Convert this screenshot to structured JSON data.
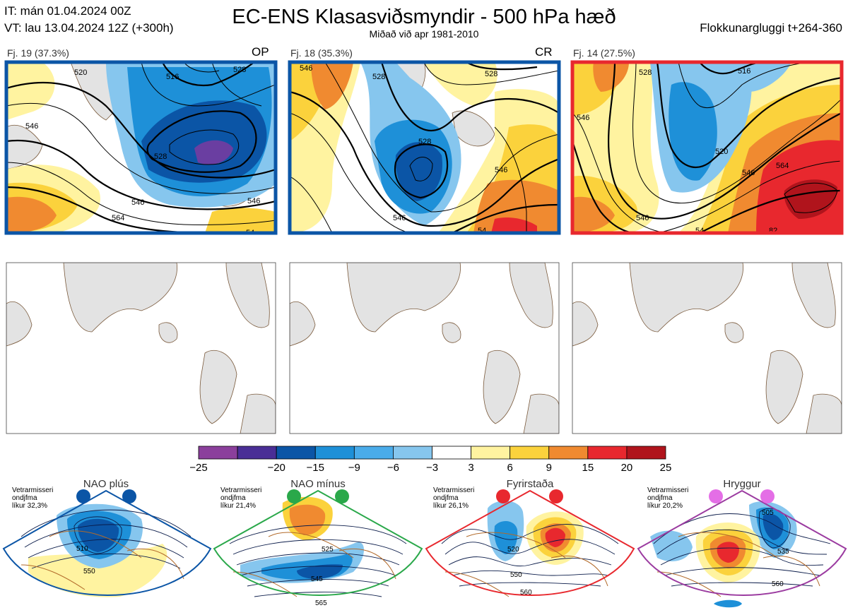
{
  "header": {
    "it": "IT: mán 01.04.2024 00Z",
    "vt": "VT: lau 13.04.2024 12Z  (+300h)",
    "title": "EC-ENS Klasasviðsmyndir - 500 hPa hæð",
    "subtitle": "Miðað við apr 1981-2010",
    "window": "Flokkunargluggi t+264-360"
  },
  "clusters": [
    {
      "label": "Fj. 19 (37.3%)",
      "tag": "OP",
      "border_color": "#0b55a6",
      "contours": [
        "520",
        "516",
        "528",
        "546",
        "528",
        "546",
        "564",
        "546",
        "54"
      ]
    },
    {
      "label": "Fj. 18 (35.3%)",
      "tag": "CR",
      "border_color": "#0b55a6",
      "contours": [
        "546",
        "528",
        "528",
        "528",
        "546",
        "546",
        "54"
      ]
    },
    {
      "label": "Fj. 14 (27.5%)",
      "tag": "",
      "border_color": "#e8282e",
      "contours": [
        "528",
        "516",
        "546",
        "520",
        "546",
        "564",
        "546",
        "54",
        "82"
      ]
    }
  ],
  "colors": {
    "land": "#e3e3e3",
    "coast": "#7a5a3c",
    "neg_strong": "#6a3ea1",
    "neg1": "#0b55a6",
    "neg2": "#1e90d8",
    "neg3": "#86c6ee",
    "pos1": "#fff3a0",
    "pos2": "#fbd23c",
    "pos3": "#f08a30",
    "pos4": "#e8282e",
    "pos5": "#b0141c"
  },
  "colorbar": {
    "ticks": [
      "−25",
      "−20",
      "−15",
      "−9",
      "−6",
      "−3",
      "3",
      "6",
      "9",
      "15",
      "20",
      "25"
    ],
    "colors": [
      "#8b3f9c",
      "#4a2e96",
      "#0b55a6",
      "#1e90d8",
      "#4aacea",
      "#86c6ee",
      "#ffffff",
      "#fff3a0",
      "#fbd23c",
      "#f08a30",
      "#e8282e",
      "#b0141c"
    ]
  },
  "regimes": [
    {
      "name": "NAO plús",
      "ref": [
        "Vetrarmisseri",
        "ondjfma",
        "líkur 32,3%"
      ],
      "color": "#0b55a6",
      "contours": [
        "510",
        "550"
      ]
    },
    {
      "name": "NAO mínus",
      "ref": [
        "Vetrarmisseri",
        "ondjfma",
        "líkur 21,4%"
      ],
      "color": "#2aa84a",
      "contours": [
        "525",
        "545",
        "565"
      ]
    },
    {
      "name": "Fyrirstaða",
      "ref": [
        "Vetrarmisseri",
        "ondjfma",
        "líkur 26,1%"
      ],
      "color": "#e8282e",
      "contours": [
        "520",
        "550",
        "560"
      ]
    },
    {
      "name": "Hryggur",
      "ref": [
        "Vetrarmisseri",
        "ondjfma",
        "líkur 20,2%"
      ],
      "color": "#e46ee6",
      "contours": [
        "505",
        "535",
        "560"
      ]
    }
  ],
  "chart_data": {
    "type": "heatmap",
    "title": "EC-ENS Klasasviðsmyndir - 500 hPa hæð",
    "subtitle": "Miðað við apr 1981-2010",
    "variable": "500 hPa height anomaly (dam) with height contours",
    "colorbar_ticks": [
      -25,
      -20,
      -15,
      -9,
      -6,
      -3,
      3,
      6,
      9,
      15,
      20,
      25
    ],
    "clusters": [
      {
        "id": 19,
        "percent": 37.3,
        "tag": "OP",
        "regime": "NAO plús"
      },
      {
        "id": 18,
        "percent": 35.3,
        "tag": "CR",
        "regime": "NAO plús"
      },
      {
        "id": 14,
        "percent": 27.5,
        "tag": "",
        "regime": "Fyrirstaða"
      }
    ],
    "regime_probabilities": [
      {
        "regime": "NAO plús",
        "percent": 32.3
      },
      {
        "regime": "NAO mínus",
        "percent": 21.4
      },
      {
        "regime": "Fyrirstaða",
        "percent": 26.1
      },
      {
        "regime": "Hryggur",
        "percent": 20.2
      }
    ]
  }
}
